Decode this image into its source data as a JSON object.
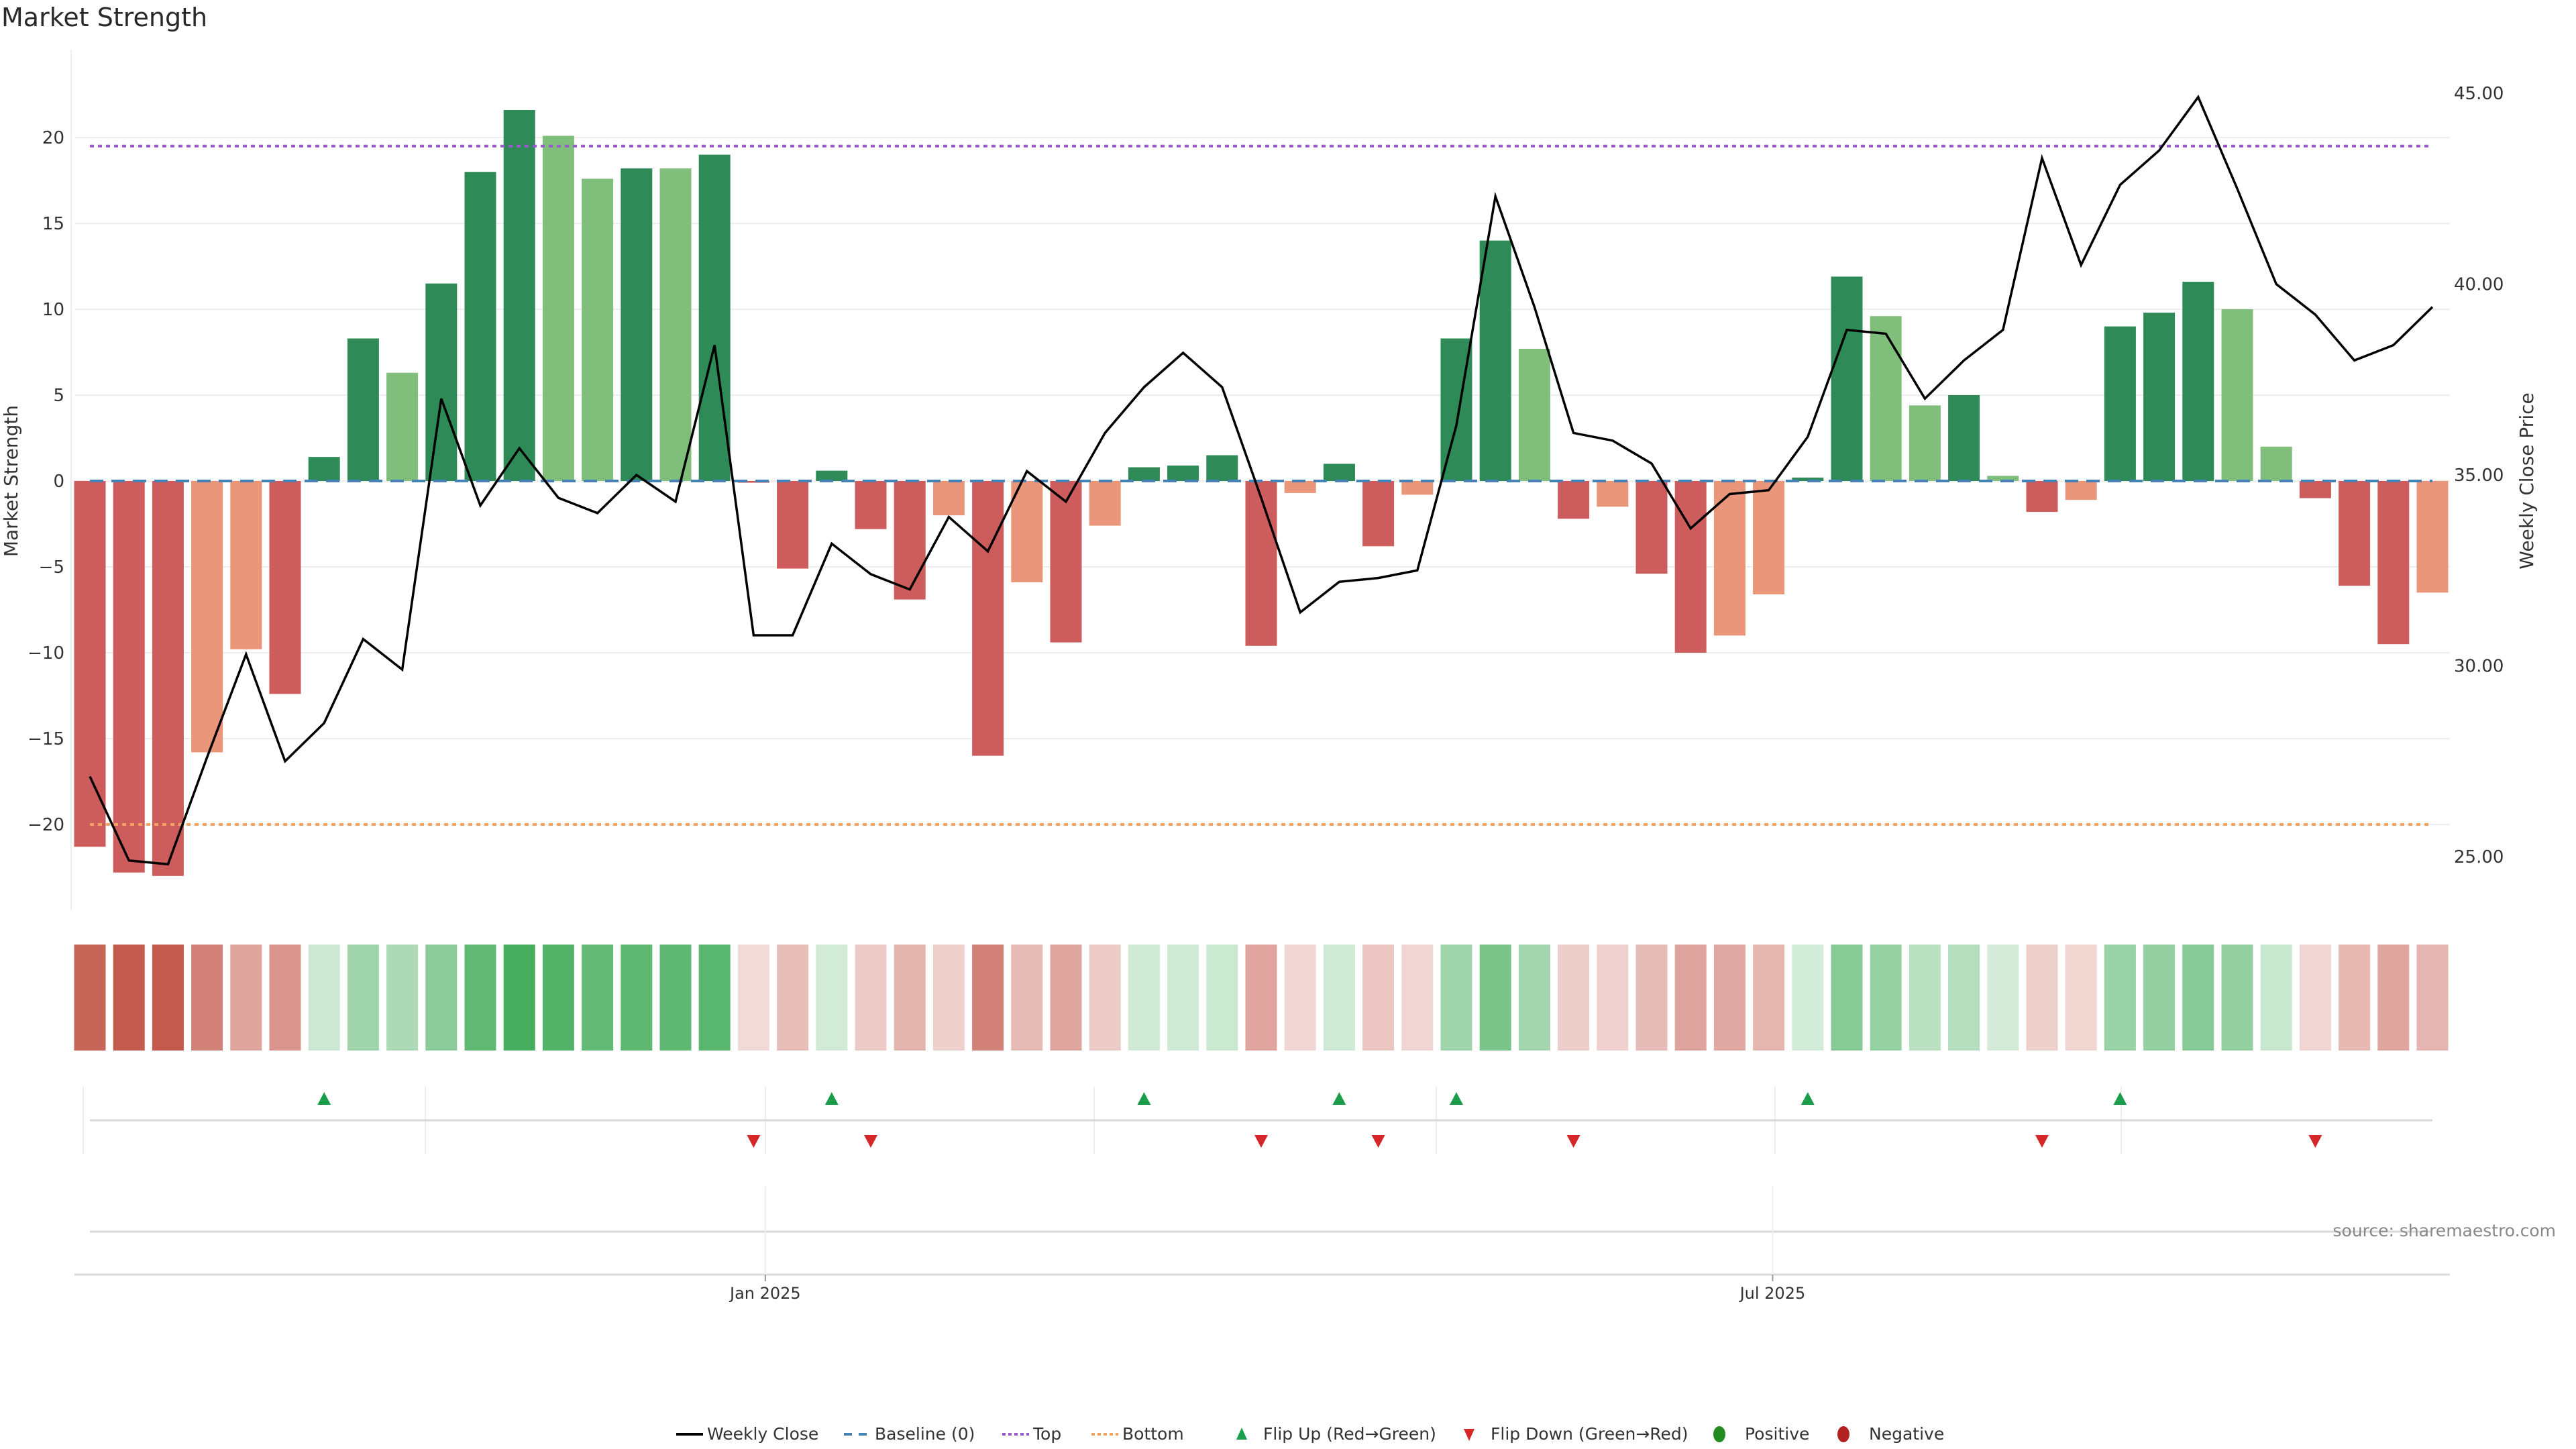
{
  "chart_data": {
    "type": "bar",
    "title": "Market Strength",
    "ylabel": "Market Strength",
    "y2label": "Weekly Close Price",
    "ylim": [
      -25,
      25
    ],
    "y2lim": [
      23.5,
      46.5
    ],
    "yticks": [
      -20,
      -15,
      -10,
      -5,
      0,
      5,
      10,
      15,
      20
    ],
    "y2ticks": [
      "25.00",
      "30.00",
      "35.00",
      "40.00",
      "45.00"
    ],
    "xticks": [
      {
        "label": "Jan 2025",
        "index": 17.3
      },
      {
        "label": "Jul 2025",
        "index": 43.1
      }
    ],
    "top_level": 19.5,
    "bottom_level": -20,
    "series": [
      {
        "name": "Market Strength",
        "values": [
          -21.3,
          -22.8,
          -23,
          -15.8,
          -9.8,
          -12.4,
          1.4,
          8.3,
          6.3,
          11.5,
          18,
          21.6,
          20.1,
          17.6,
          18.2,
          18.2,
          19,
          -0.1,
          -5.1,
          0.6,
          -2.8,
          -6.9,
          -2,
          -16,
          -5.9,
          -9.4,
          -2.6,
          0.8,
          0.9,
          1.5,
          -9.6,
          -0.7,
          1.0,
          -3.8,
          -0.8,
          8.3,
          14,
          7.7,
          -2.2,
          -1.5,
          -5.4,
          -10,
          -9,
          -6.6,
          0.2,
          11.9,
          9.6,
          4.4,
          5,
          0.3,
          -1.8,
          -1.1,
          9,
          9.8,
          11.6,
          10,
          2,
          -1,
          -6.1,
          -9.5,
          -6.5
        ],
        "shade": [
          "R",
          "R",
          "R",
          "r",
          "r",
          "R",
          "G",
          "G",
          "g",
          "G",
          "G",
          "G",
          "g",
          "g",
          "G",
          "g",
          "G",
          "R",
          "R",
          "G",
          "R",
          "R",
          "r",
          "R",
          "r",
          "R",
          "r",
          "G",
          "G",
          "G",
          "R",
          "r",
          "G",
          "R",
          "r",
          "G",
          "G",
          "g",
          "R",
          "r",
          "R",
          "R",
          "r",
          "r",
          "G",
          "G",
          "g",
          "g",
          "G",
          "g",
          "R",
          "r",
          "G",
          "G",
          "G",
          "g",
          "g",
          "R",
          "R",
          "R",
          "r"
        ]
      },
      {
        "name": "Weekly Close",
        "values": [
          27.1,
          24.9,
          24.8,
          27.6,
          30.3,
          27.5,
          28.5,
          30.7,
          29.9,
          37.0,
          34.2,
          35.7,
          34.4,
          34.0,
          35.0,
          34.3,
          38.4,
          30.8,
          30.8,
          33.2,
          32.4,
          32.0,
          33.9,
          33.0,
          35.1,
          34.3,
          36.1,
          37.3,
          38.2,
          37.3,
          34.4,
          31.4,
          32.2,
          32.3,
          32.5,
          36.3,
          42.3,
          39.4,
          36.1,
          35.9,
          35.3,
          33.6,
          34.5,
          34.6,
          36.0,
          38.8,
          38.7,
          37.0,
          38.0,
          38.8,
          43.3,
          40.5,
          42.6,
          43.5,
          44.9,
          42.5,
          40.0,
          39.2,
          38.0,
          38.4,
          39.4
        ]
      }
    ],
    "flip_up_indices": [
      6,
      19,
      27,
      32,
      35,
      44,
      52
    ],
    "flip_down_indices": [
      17,
      20,
      30,
      33,
      38,
      50,
      57
    ],
    "legend": [
      "Weekly Close",
      "Baseline (0)",
      "Top",
      "Bottom",
      "Flip Up (Red→Green)",
      "Flip Down (Green→Red)",
      "Positive",
      "Negative"
    ],
    "legend_position": "bottom-center",
    "colors": {
      "strong_pos": "#2e8b57",
      "weak_pos": "#7fbf7b",
      "strong_neg": "#cd5c5c",
      "weak_neg": "#e9967a",
      "heat_pos": "#3faa57",
      "heat_neg": "#c45a4e",
      "top": "#9b59d0",
      "bottom": "#f4a460",
      "baseline": "#4682b4",
      "flip_up": "#1a9e4a",
      "flip_down": "#d62728",
      "positive": "#228b22",
      "negative": "#b22222"
    }
  },
  "source": "source: sharemaestro.com"
}
